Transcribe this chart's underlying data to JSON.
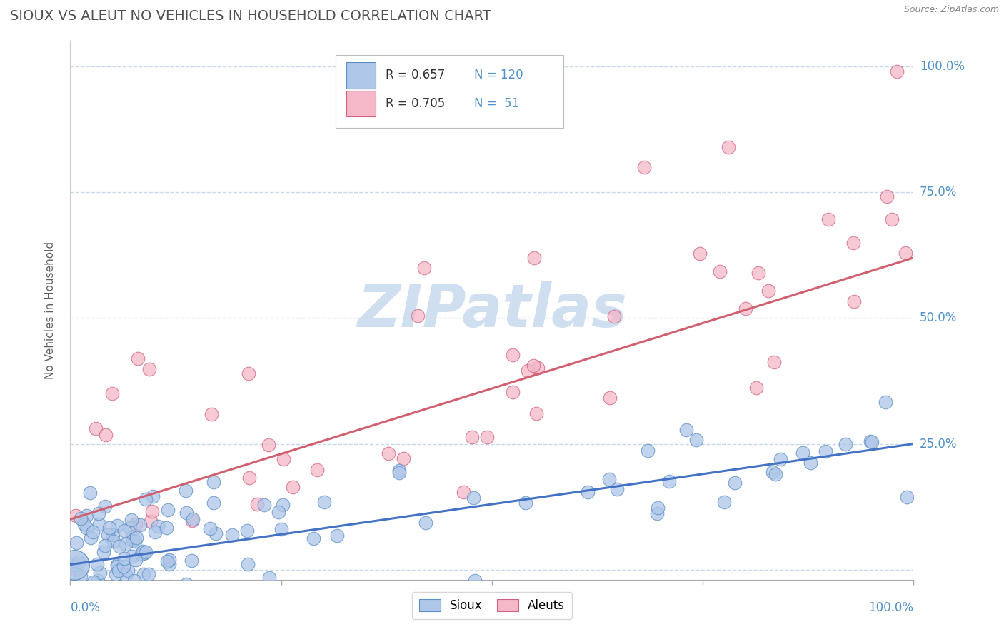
{
  "title": "SIOUX VS ALEUT NO VEHICLES IN HOUSEHOLD CORRELATION CHART",
  "source": "Source: ZipAtlas.com",
  "ylabel": "No Vehicles in Household",
  "sioux_R": 0.657,
  "sioux_N": 120,
  "aleut_R": 0.705,
  "aleut_N": 51,
  "sioux_color": "#aec6e8",
  "sioux_edge_color": "#5b8ec4",
  "sioux_line_color": "#4472c4",
  "aleut_color": "#f4b8c8",
  "aleut_edge_color": "#d06080",
  "aleut_line_color": "#d06070",
  "background_color": "#ffffff",
  "grid_color": "#c8d8ec",
  "title_color": "#505050",
  "axis_label_color": "#5090c8",
  "watermark_color": "#d0dff0",
  "legend_text_color": "#5090c8",
  "sioux_seed": 42,
  "aleut_seed": 99,
  "sioux_line_intercept": 0.01,
  "sioux_line_slope": 0.24,
  "aleut_line_intercept": 0.1,
  "aleut_line_slope": 0.52
}
